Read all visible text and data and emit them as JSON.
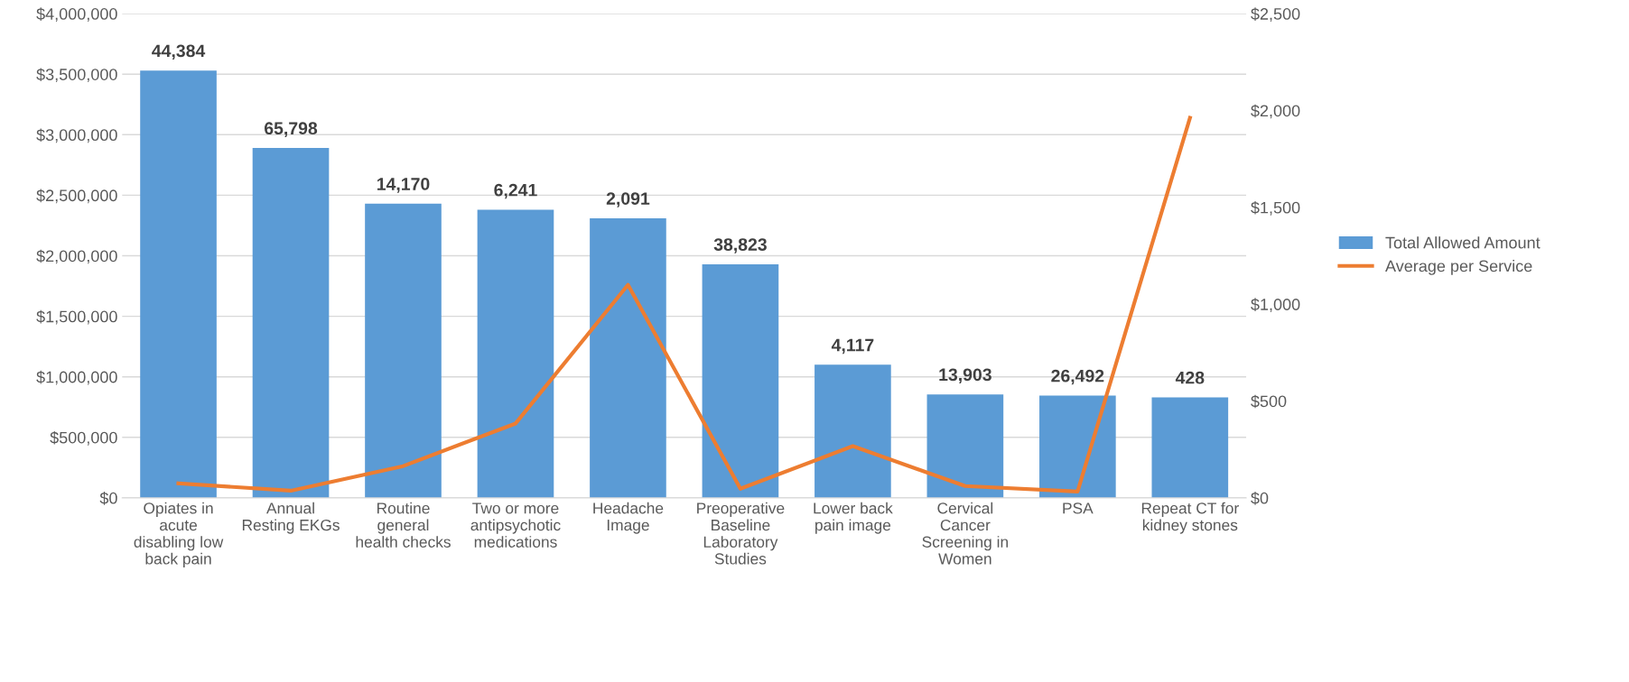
{
  "chart_data": {
    "type": "bar",
    "categories": [
      "Opiates in acute disabling low back pain",
      "Annual Resting EKGs",
      "Routine general health checks",
      "Two or more antipsychotic medications",
      "Headache Image",
      "Preoperative Baseline Laboratory Studies",
      "Lower back pain image",
      "Cervical Cancer Screening in Women",
      "PSA",
      "Repeat CT for kidney stones"
    ],
    "series": [
      {
        "name": "Total Allowed Amount",
        "color": "#5b9bd5",
        "values": [
          3530000,
          2890000,
          2430000,
          2380000,
          2310000,
          1930000,
          1100000,
          855000,
          845000,
          830000
        ]
      },
      {
        "name": "Average per Service",
        "type": "line",
        "axis": "y2",
        "color": "#ed7d31",
        "values": [
          75,
          37,
          164,
          384,
          1100,
          47,
          267,
          61,
          33,
          1962
        ]
      }
    ],
    "annotations": [
      {
        "text": "44,384",
        "x": "Opiates in acute disabling low back pain",
        "y": 3530000
      },
      {
        "text": "65,798",
        "x": "Annual Resting EKGs",
        "y": 2890000
      },
      {
        "text": "14,170",
        "x": "Routine general health checks",
        "y": 2430000
      },
      {
        "text": "6,241",
        "x": "Two or more antipsychotic medications",
        "y": 2380000
      },
      {
        "text": "2,091",
        "x": "Headache Image",
        "y": 2310000
      },
      {
        "text": "38,823",
        "x": "Preoperative Baseline Laboratory Studies",
        "y": 1930000
      },
      {
        "text": "4,117",
        "x": "Lower back pain image",
        "y": 1100000
      },
      {
        "text": "13,903",
        "x": "Cervical Cancer Screening in Women",
        "y": 855000
      },
      {
        "text": "26,492",
        "x": "PSA",
        "y": 845000
      },
      {
        "text": "428",
        "x": "Repeat CT for kidney stones",
        "y": 830000
      }
    ],
    "ylim": [
      0,
      4000000
    ],
    "yticks": [
      {
        "value": 0,
        "label": "$0"
      },
      {
        "value": 500000,
        "label": "$500,000"
      },
      {
        "value": 1000000,
        "label": "$1,000,000"
      },
      {
        "value": 1500000,
        "label": "$1,500,000"
      },
      {
        "value": 2000000,
        "label": "$2,000,000"
      },
      {
        "value": 2500000,
        "label": "$2,500,000"
      },
      {
        "value": 3000000,
        "label": "$3,000,000"
      },
      {
        "value": 3500000,
        "label": "$3,500,000"
      },
      {
        "value": 4000000,
        "label": "$4,000,000"
      }
    ],
    "y2lim": [
      0,
      2500
    ],
    "y2ticks": [
      {
        "value": 0,
        "label": "$0"
      },
      {
        "value": 500,
        "label": "$500"
      },
      {
        "value": 1000,
        "label": "$1,000"
      },
      {
        "value": 1500,
        "label": "$1,500"
      },
      {
        "value": 2000,
        "label": "$2,000"
      },
      {
        "value": 2500,
        "label": "$2,500"
      }
    ],
    "grid": "y",
    "legend": "right",
    "marker": "none",
    "line_style": "solid"
  }
}
